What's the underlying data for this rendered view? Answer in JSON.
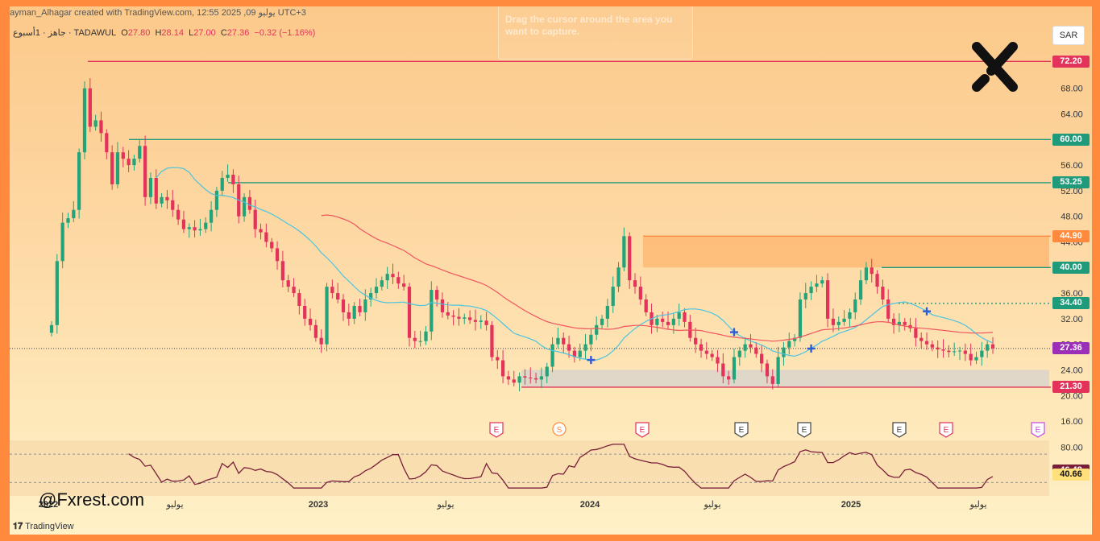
{
  "header": {
    "watermark": "ayman_Alhagar created with TradingView.com, 12:55 2025 ,09 يوليو UTC+3",
    "symbol_desc": "جاهز · 1أسبوع · TADAWUL",
    "open_label": "O",
    "open": "27.80",
    "high_label": "H",
    "high": "28.14",
    "low_label": "L",
    "low": "27.00",
    "close_label": "C",
    "close": "27.36",
    "change": "−0.32 (−1.16%)"
  },
  "currency_button": "SAR",
  "capture_hint": "Drag the cursor around the area you want to capture.",
  "watermark_brand": "@Fxrest.com",
  "footer_brand": "TradingView",
  "colors": {
    "up": "#22a37a",
    "down": "#e3335b",
    "ma_fast": "#4cc4e0",
    "ma_slow": "#f0555f",
    "rsi": "#7a1f3a"
  },
  "chart_data": {
    "type": "candlestick",
    "timeframe": "1W",
    "price_axis": {
      "ticks": [
        "68.00",
        "64.00",
        "60.00",
        "56.00",
        "52.00",
        "48.00",
        "44.00",
        "40.00",
        "36.00",
        "32.00",
        "28.00",
        "24.00",
        "20.00",
        "16.00"
      ],
      "ylim": [
        15,
        74
      ]
    },
    "time_axis": {
      "labels": [
        "2022",
        "يوليو",
        "2023",
        "يوليو",
        "2024",
        "يوليو",
        "2025",
        "يوليو"
      ]
    },
    "levels": [
      {
        "value": 72.2,
        "label": "72.20",
        "color": "#e3335b"
      },
      {
        "value": 60.0,
        "label": "60.00",
        "color": "#1f9a7a"
      },
      {
        "value": 53.25,
        "label": "53.25",
        "color": "#1f9a7a"
      },
      {
        "value": 44.9,
        "label": "44.90",
        "color": "#ff8a3d"
      },
      {
        "value": 40.0,
        "label": "40.00",
        "color": "#1f9a7a"
      },
      {
        "value": 34.4,
        "label": "34.40",
        "color": "#1f9a7a"
      },
      {
        "value": 27.36,
        "label": "27.36",
        "color": "#9b2fb8"
      },
      {
        "value": 21.3,
        "label": "21.30",
        "color": "#e3335b"
      }
    ],
    "zones": [
      {
        "from": 40.0,
        "to": 44.9,
        "color": "#ff9b4a"
      },
      {
        "from": 21.3,
        "to": 24.0,
        "color": "#c9cdd6"
      }
    ],
    "events": [
      "E",
      "S",
      "E",
      "E",
      "E",
      "E",
      "E",
      "E"
    ],
    "rsi": {
      "levels": [
        80,
        46.48,
        40.66
      ],
      "labels": [
        "80.00",
        "46.48",
        "40.66"
      ]
    },
    "closes": [
      31.0,
      41.0,
      47.0,
      47.7,
      49.0,
      58.0,
      68.0,
      62.0,
      63.0,
      61.0,
      58.0,
      53.0,
      58.0,
      57.0,
      56.0,
      57.0,
      59.0,
      51.0,
      54.0,
      50.0,
      51.0,
      50.5,
      49.0,
      47.5,
      46.0,
      46.3,
      45.8,
      46.0,
      47.0,
      49.0,
      52.0,
      54.0,
      54.5,
      53.0,
      48.0,
      51.0,
      49.0,
      46.0,
      45.5,
      44.0,
      43.0,
      41.0,
      38.0,
      37.0,
      36.0,
      34.0,
      32.0,
      31.0,
      29.0,
      28.0,
      37.0,
      36.0,
      35.0,
      33.0,
      32.0,
      34.0,
      33.0,
      35.0,
      36.0,
      37.0,
      38.0,
      39.0,
      38.5,
      37.5,
      37.0,
      29.0,
      28.5,
      28.5,
      30.0,
      36.5,
      35.0,
      33.0,
      32.5,
      32.3,
      32.0,
      32.2,
      31.8,
      31.5,
      31.7,
      31.0,
      26.0,
      25.5,
      23.0,
      22.5,
      22.0,
      23.0,
      22.8,
      22.7,
      22.5,
      23.0,
      24.5,
      28.0,
      29.0,
      28.0,
      27.0,
      26.0,
      27.0,
      28.0,
      29.5,
      31.0,
      32.0,
      34.0,
      37.0,
      40.0,
      44.9,
      38.0,
      37.0,
      35.0,
      33.0,
      31.0,
      32.0,
      31.5,
      31.0,
      32.0,
      33.0,
      31.5,
      29.0,
      28.0,
      27.0,
      26.5,
      26.0,
      25.0,
      23.0,
      22.5,
      26.0,
      27.0,
      28.0,
      27.5,
      26.5,
      25.0,
      23.0,
      21.8,
      26.0,
      27.5,
      28.5,
      29.0,
      35.0,
      36.0,
      37.0,
      37.5,
      38.0,
      32.0,
      31.0,
      31.5,
      32.0,
      33.0,
      35.0,
      38.0,
      40.0,
      39.0,
      37.0,
      35.0,
      32.0,
      31.0,
      31.5,
      31.0,
      30.5,
      29.0,
      28.5,
      28.0,
      27.5,
      27.2,
      27.0,
      26.8,
      26.9,
      27.0,
      26.5,
      25.5,
      26.0,
      27.0,
      28.0,
      27.36
    ]
  }
}
